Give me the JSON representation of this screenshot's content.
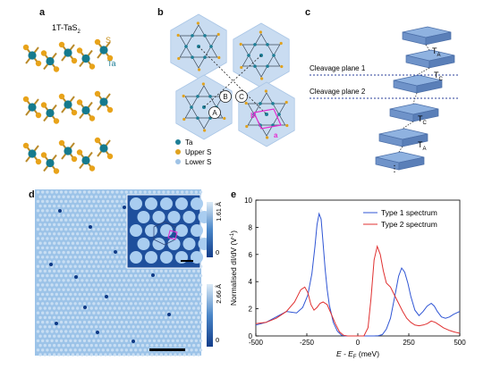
{
  "panels": {
    "a": {
      "letter": "a",
      "title": "1T-TaS",
      "title_sub": "2",
      "label_s": "S",
      "label_ta": "Ta"
    },
    "b": {
      "letter": "b",
      "site_labels": [
        "A",
        "B",
        "C"
      ],
      "vector_labels": [
        "a",
        "b"
      ],
      "legend": [
        {
          "label": "Ta",
          "color": "#1d7e96"
        },
        {
          "label": "Upper S",
          "color": "#e0a21f"
        },
        {
          "label": "Lower S",
          "color": "#9fc3e6"
        }
      ]
    },
    "c": {
      "letter": "c",
      "labels": [
        "T",
        "T",
        "T",
        "T"
      ],
      "label_subs": [
        "A",
        "C",
        "C",
        "A"
      ],
      "cleavage_1": "Cleavage plane 1",
      "cleavage_2": "Cleavage plane 2",
      "dots": "⋮"
    },
    "d": {
      "letter": "d",
      "colorbar_top": "1.61 Å",
      "colorbar_bottom": "2.66 Å",
      "colorbar_top_zero": "0",
      "colorbar_bottom_zero": "0",
      "colors": {
        "dark": "#123d8a",
        "mid": "#4a86c8",
        "light": "#dcebf7"
      }
    },
    "e": {
      "letter": "e"
    }
  },
  "chart_data": {
    "type": "line",
    "xlabel": "E - E",
    "xlabel_sub": "F",
    "xlabel_unit": " (meV)",
    "ylabel": "Normalised dI/dV (V",
    "ylabel_sup": "-1",
    "ylabel_end": ")",
    "xlim": [
      -500,
      500
    ],
    "ylim": [
      0,
      10
    ],
    "xticks": [
      -500,
      -250,
      0,
      250,
      500
    ],
    "yticks": [
      0,
      2,
      4,
      6,
      8,
      10
    ],
    "legend_position": "top-right",
    "series": [
      {
        "name": "Type 1 spectrum",
        "color": "#2f55d4",
        "x": [
          -500,
          -450,
          -400,
          -350,
          -300,
          -270,
          -245,
          -225,
          -210,
          -200,
          -190,
          -180,
          -170,
          -160,
          -150,
          -140,
          -120,
          -100,
          -80,
          -60,
          -40,
          -20,
          0,
          20,
          40,
          60,
          80,
          100,
          120,
          140,
          160,
          180,
          200,
          215,
          230,
          245,
          260,
          280,
          300,
          320,
          340,
          360,
          375,
          390,
          410,
          430,
          450,
          470,
          500
        ],
        "y": [
          0.8,
          1.0,
          1.4,
          1.8,
          1.7,
          2.1,
          3.0,
          4.6,
          6.6,
          8.2,
          9.0,
          8.6,
          6.8,
          4.9,
          3.4,
          2.3,
          1.0,
          0.35,
          0.05,
          0.0,
          0.0,
          0.0,
          0.0,
          0.0,
          0.0,
          0.0,
          0.0,
          0.02,
          0.1,
          0.5,
          1.3,
          2.8,
          4.4,
          5.0,
          4.7,
          3.9,
          2.9,
          1.9,
          1.5,
          1.8,
          2.2,
          2.4,
          2.2,
          1.8,
          1.4,
          1.3,
          1.4,
          1.6,
          1.8
        ]
      },
      {
        "name": "Type 2 spectrum",
        "color": "#e03030",
        "x": [
          -500,
          -450,
          -400,
          -350,
          -310,
          -280,
          -260,
          -245,
          -230,
          -215,
          -200,
          -185,
          -170,
          -150,
          -130,
          -110,
          -90,
          -70,
          -50,
          -30,
          -10,
          10,
          30,
          50,
          65,
          80,
          95,
          110,
          125,
          140,
          160,
          180,
          200,
          220,
          240,
          260,
          280,
          300,
          320,
          340,
          360,
          380,
          400,
          420,
          450,
          470,
          500
        ],
        "y": [
          0.9,
          1.0,
          1.3,
          1.8,
          2.5,
          3.4,
          3.6,
          3.2,
          2.3,
          1.9,
          2.1,
          2.4,
          2.5,
          2.3,
          1.6,
          0.9,
          0.3,
          0.05,
          0.0,
          0.0,
          0.0,
          0.0,
          0.0,
          0.6,
          2.8,
          5.6,
          6.6,
          6.0,
          4.8,
          3.9,
          3.6,
          3.0,
          2.4,
          1.8,
          1.3,
          1.0,
          0.8,
          0.75,
          0.8,
          0.9,
          1.1,
          1.0,
          0.8,
          0.6,
          0.4,
          0.3,
          0.2
        ]
      }
    ]
  }
}
